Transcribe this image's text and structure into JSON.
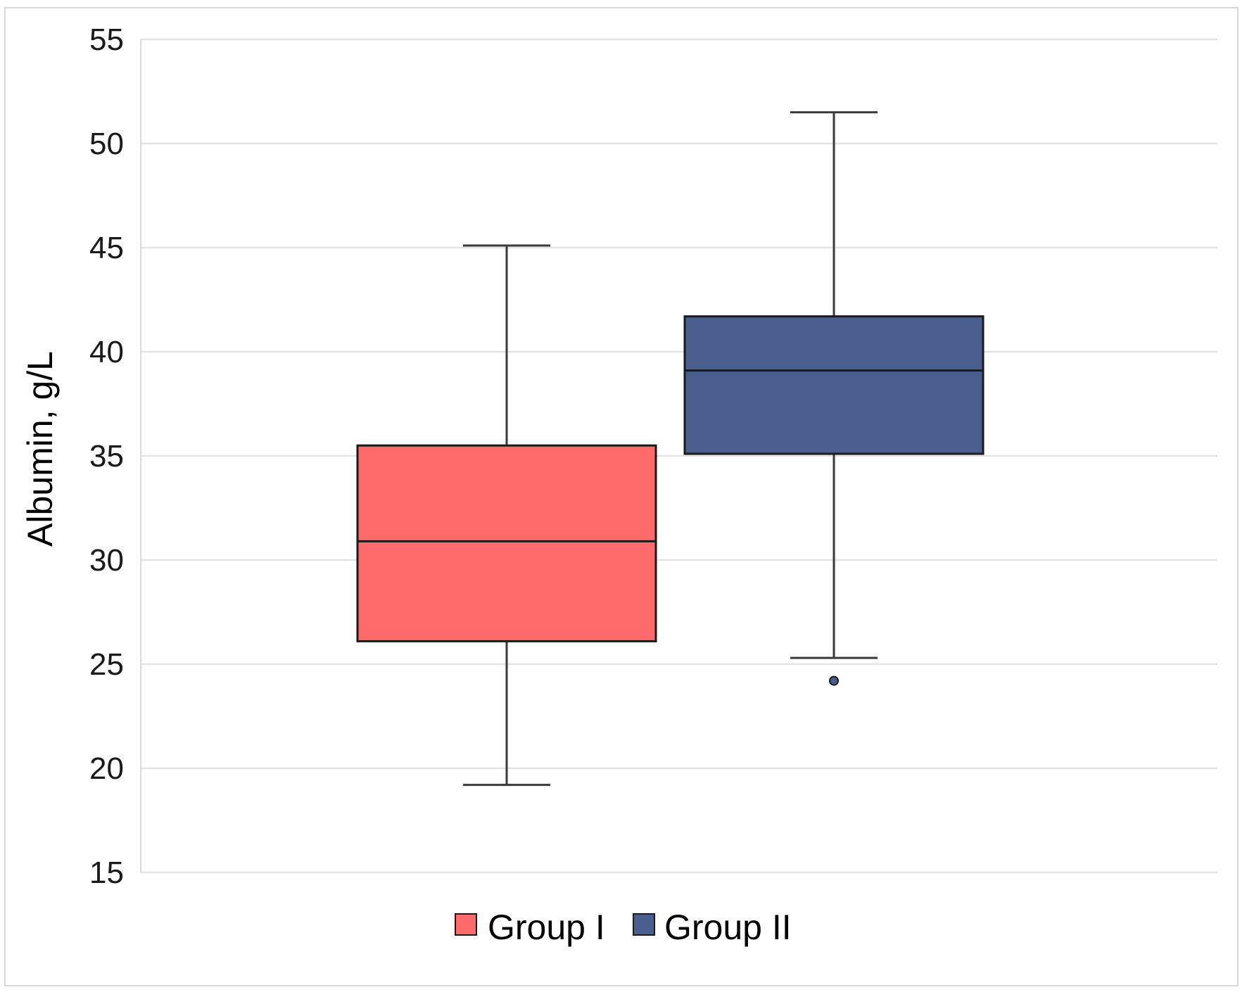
{
  "chart_data": {
    "type": "box",
    "title": "",
    "xlabel": "",
    "ylabel": "Albumin,  g/L",
    "ylim": [
      15,
      55
    ],
    "yticks": [
      "15",
      "20",
      "25",
      "30",
      "35",
      "40",
      "45",
      "50",
      "55"
    ],
    "grid": true,
    "legend_position": "bottom-center",
    "series": [
      {
        "name": "Group I",
        "color": "#ff6b6b",
        "whisker_low": 19.2,
        "q1": 26.1,
        "median": 30.9,
        "q3": 35.5,
        "whisker_high": 45.1,
        "outliers": []
      },
      {
        "name": "Group II",
        "color": "#4a5f8e",
        "whisker_low": 25.3,
        "q1": 35.1,
        "median": 39.1,
        "q3": 41.7,
        "whisker_high": 51.5,
        "outliers": [
          24.2
        ]
      }
    ]
  }
}
